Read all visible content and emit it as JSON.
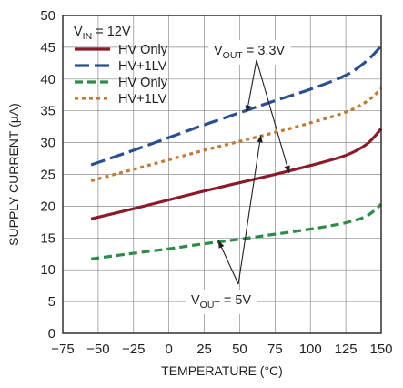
{
  "chart_data": {
    "type": "line",
    "xlabel": "TEMPERATURE (°C)",
    "ylabel": "SUPPLY CURRENT (µA)",
    "xlim": [
      -75,
      150
    ],
    "ylim": [
      0,
      50
    ],
    "xticks": [
      -75,
      -50,
      -25,
      0,
      25,
      50,
      75,
      100,
      125,
      150
    ],
    "yticks": [
      0,
      5,
      10,
      15,
      20,
      25,
      30,
      35,
      40,
      45,
      50
    ],
    "grid": true,
    "legend_position": "top-left",
    "condition": {
      "main": "V",
      "sub": "IN",
      "rest": " = 12V"
    },
    "series": [
      {
        "name": "HV Only",
        "group": "3.3V",
        "color": "#8b1a2b",
        "dash": "solid",
        "x": [
          -55,
          -25,
          0,
          25,
          50,
          75,
          100,
          125,
          140,
          150
        ],
        "y": [
          18.0,
          19.6,
          21.0,
          22.4,
          23.7,
          25.0,
          26.4,
          28.0,
          29.8,
          32.2
        ]
      },
      {
        "name": "HV+1LV",
        "group": "3.3V",
        "color": "#2c4f8f",
        "dash": "long",
        "x": [
          -55,
          -25,
          0,
          25,
          50,
          75,
          100,
          125,
          140,
          150
        ],
        "y": [
          26.5,
          28.8,
          30.8,
          32.8,
          34.7,
          36.6,
          38.4,
          40.6,
          42.9,
          45.2
        ]
      },
      {
        "name": "HV Only",
        "group": "5V",
        "color": "#2e8b4a",
        "dash": "medium",
        "x": [
          -55,
          -25,
          0,
          25,
          50,
          75,
          100,
          125,
          140,
          150
        ],
        "y": [
          11.7,
          12.6,
          13.3,
          14.1,
          14.8,
          15.6,
          16.4,
          17.4,
          18.5,
          20.3
        ]
      },
      {
        "name": "HV+1LV",
        "group": "5V",
        "color": "#c07a3a",
        "dash": "dotted",
        "x": [
          -55,
          -25,
          0,
          25,
          50,
          75,
          100,
          125,
          140,
          150
        ],
        "y": [
          24.0,
          25.8,
          27.3,
          28.8,
          30.2,
          31.6,
          33.1,
          34.8,
          36.5,
          38.5
        ]
      }
    ],
    "annotations": [
      {
        "main": "V",
        "sub": "OUT",
        "rest": " = 3.3V",
        "arrow_to": [
          [
            55,
            34.7
          ],
          [
            85,
            25.2
          ]
        ]
      },
      {
        "main": "V",
        "sub": "OUT",
        "rest": " = 5V",
        "arrow_to": [
          [
            65,
            31.2
          ],
          [
            35,
            14.6
          ]
        ]
      }
    ]
  }
}
